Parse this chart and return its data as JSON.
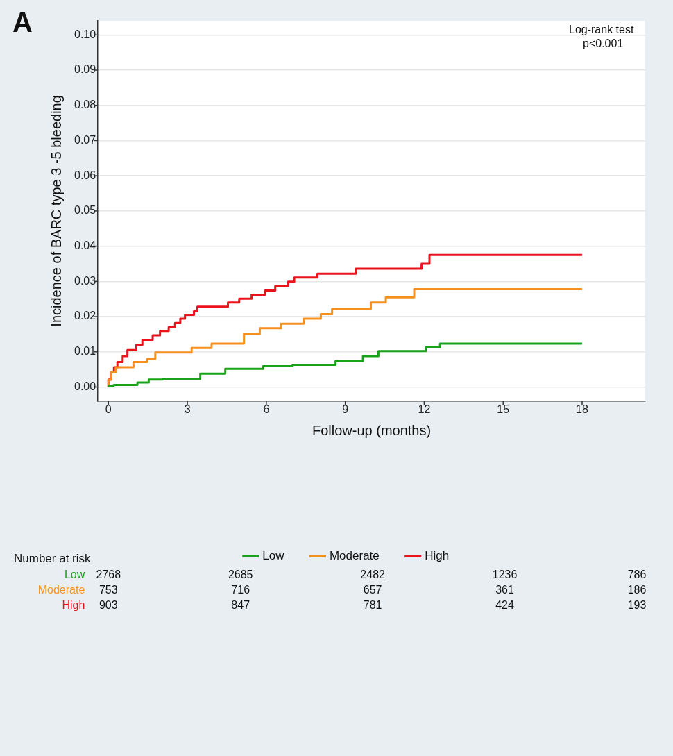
{
  "chart_data": {
    "type": "step",
    "xlabel": "Follow-up (months)",
    "ylabel": "Incidence of BARC type 3 -5 bleeding",
    "xlim": [
      -0.4,
      20.4
    ],
    "xticks": [
      0,
      3,
      6,
      9,
      12,
      15,
      18
    ],
    "ylim": [
      -0.004,
      0.104
    ],
    "yticks": [
      {
        "value": 0,
        "label": "0.00"
      },
      0.01,
      0.02,
      0.03,
      0.04,
      0.05,
      0.06,
      0.07,
      0.08,
      0.09,
      {
        "value": 0.1,
        "label": "0.10"
      }
    ],
    "grid": "y",
    "legend": "bottom",
    "series": [
      {
        "name": "Low",
        "color": "#1aa31a",
        "x": [
          0,
          0.2,
          1.1,
          1.53,
          2.06,
          3.49,
          4.44,
          5.88,
          7.0,
          8.63,
          9.67,
          10.26,
          12.06,
          12.6,
          13.07,
          18
        ],
        "values": [
          0,
          0.0003,
          0.0006,
          0.0013,
          0.0021,
          0.0023,
          0.0038,
          0.0052,
          0.0059,
          0.0063,
          0.0074,
          0.0088,
          0.0102,
          0.0113,
          0.0123,
          0.0123
        ]
      },
      {
        "name": "Moderate",
        "color": "#f5901e",
        "x": [
          0,
          0.1,
          0.28,
          0.95,
          1.47,
          1.78,
          3.16,
          3.92,
          5.15,
          5.75,
          6.55,
          7.42,
          8.07,
          8.5,
          9.97,
          10.54,
          11.62,
          14.07,
          18
        ],
        "values": [
          0,
          0.002,
          0.0042,
          0.0056,
          0.0071,
          0.008,
          0.0098,
          0.0111,
          0.0123,
          0.0151,
          0.0167,
          0.018,
          0.0194,
          0.0207,
          0.0222,
          0.024,
          0.0255,
          0.0278,
          0.0278
        ]
      },
      {
        "name": "High",
        "color": "#e8131b",
        "x": [
          0,
          0.1,
          0.21,
          0.34,
          0.54,
          0.72,
          1.06,
          1.29,
          1.68,
          1.96,
          2.29,
          2.53,
          2.73,
          2.91,
          3.25,
          3.38,
          4.54,
          4.97,
          5.44,
          5.95,
          6.34,
          6.83,
          7.06,
          7.94,
          9.4,
          11.9,
          12.2,
          14.7,
          18
        ],
        "values": [
          0,
          0.0021,
          0.0042,
          0.0056,
          0.0071,
          0.0088,
          0.0105,
          0.012,
          0.0134,
          0.0147,
          0.0159,
          0.017,
          0.0182,
          0.0194,
          0.0205,
          0.0216,
          0.0228,
          0.024,
          0.0251,
          0.0262,
          0.0274,
          0.0287,
          0.0299,
          0.0311,
          0.0322,
          0.0336,
          0.035,
          0.0375,
          0.0375
        ]
      }
    ],
    "annotations": [
      "A",
      "Log-rank test",
      "p<0.001",
      "Number at risk",
      "2768 2685 2482 1236 786",
      "753 716 657 361 186",
      "903 847 781 424 193"
    ]
  }
}
